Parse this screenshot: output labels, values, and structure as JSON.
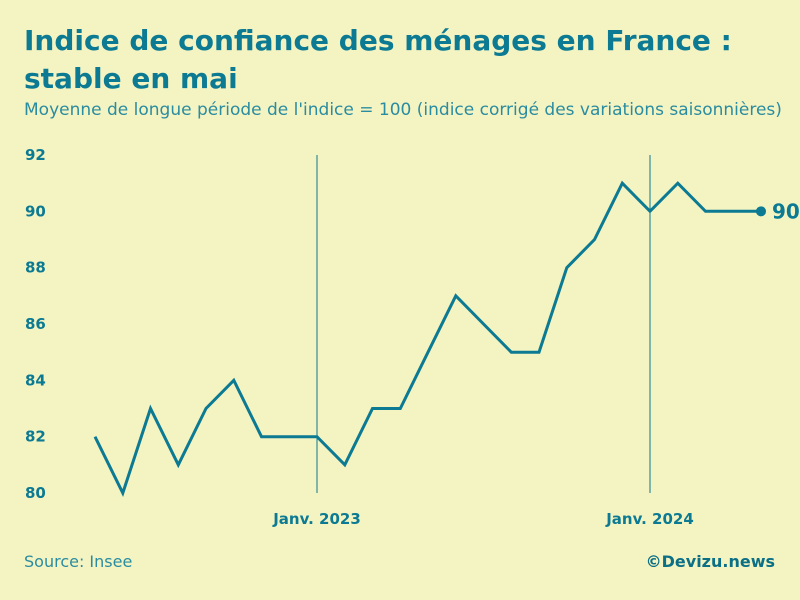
{
  "header": {
    "title": "Indice de confiance des ménages en France : stable en mai",
    "subtitle": "Moyenne de longue période de l'indice = 100 (indice corrigé des variations saisonnières)"
  },
  "footer": {
    "source": "Source: Insee",
    "credit": "©Devizu.news"
  },
  "colors": {
    "background": "#f4f3c2",
    "line": "#0b7a92"
  },
  "chart_data": {
    "type": "line",
    "title": "Indice de confiance des ménages en France : stable en mai",
    "subtitle": "Moyenne de longue période de l'indice = 100 (indice corrigé des variations saisonnières)",
    "x": [
      "2022-05",
      "2022-06",
      "2022-07",
      "2022-08",
      "2022-09",
      "2022-10",
      "2022-11",
      "2022-12",
      "2023-01",
      "2023-02",
      "2023-03",
      "2023-04",
      "2023-05",
      "2023-06",
      "2023-07",
      "2023-08",
      "2023-09",
      "2023-10",
      "2023-11",
      "2023-12",
      "2024-01",
      "2024-02",
      "2024-03",
      "2024-04",
      "2024-05"
    ],
    "series": [
      {
        "values": [
          82,
          80,
          83,
          81,
          83,
          84,
          82,
          82,
          82,
          81,
          83,
          83,
          85,
          87,
          86,
          85,
          85,
          88,
          89,
          91,
          90,
          91,
          90,
          90,
          90
        ]
      }
    ],
    "ylim": [
      80,
      92
    ],
    "yticks": [
      "80",
      "82",
      "84",
      "86",
      "88",
      "90",
      "92"
    ],
    "xticks": [
      {
        "at": "2023-01",
        "label": "Janv. 2023"
      },
      {
        "at": "2024-01",
        "label": "Janv. 2024"
      }
    ],
    "last_value_label": "90",
    "xlabel": "",
    "ylabel": "",
    "grid": false,
    "legend": "none"
  }
}
